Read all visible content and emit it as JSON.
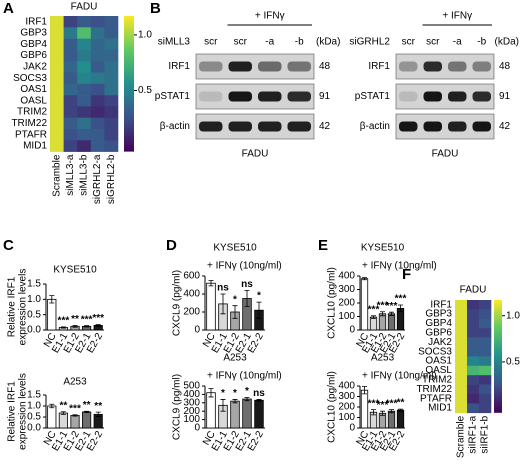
{
  "panel_labels": [
    "A",
    "B",
    "C",
    "D",
    "E",
    "F"
  ],
  "blots": [
    {
      "condition_label": "siMLL3",
      "treatment": "+ IFNγ",
      "lanes": [
        "scr",
        "scr",
        "-a",
        "-b"
      ],
      "unit": "(kDa)",
      "rows": [
        {
          "protein": "IRF1",
          "kda": 48
        },
        {
          "protein": "pSTAT1",
          "kda": 91
        },
        {
          "protein": "β-actin",
          "kda": 42
        }
      ],
      "cell_line": "FADU"
    },
    {
      "condition_label": "siGRHL2",
      "treatment": "+ IFNγ",
      "lanes": [
        "scr",
        "scr",
        "-a",
        "-b"
      ],
      "unit": "(kDa)",
      "rows": [
        {
          "protein": "IRF1",
          "kda": 48
        },
        {
          "protein": "pSTAT1",
          "kda": 91
        },
        {
          "protein": "β-actin",
          "kda": 42
        }
      ],
      "cell_line": "FADU"
    }
  ],
  "chart_data": [
    {
      "type": "heatmap",
      "title": "FADU",
      "rows": [
        "IRF1",
        "GBP3",
        "GBP4",
        "GBP6",
        "JAK2",
        "SOCS3",
        "OAS1",
        "OASL",
        "TRIM2",
        "TRIM22",
        "PTAFR",
        "MID1"
      ],
      "columns": [
        "Scramble",
        "siMLL3-a",
        "siMLL3-b",
        "siGRHL2-a",
        "siGRHL2-b"
      ],
      "values": [
        [
          1.1,
          0.2,
          0.3,
          0.25,
          0.3
        ],
        [
          1.1,
          0.45,
          0.8,
          0.4,
          0.3
        ],
        [
          1.1,
          0.3,
          0.5,
          0.35,
          0.4
        ],
        [
          1.1,
          0.3,
          0.45,
          0.35,
          0.35
        ],
        [
          1.1,
          0.35,
          0.55,
          0.3,
          0.4
        ],
        [
          1.1,
          0.3,
          0.5,
          0.45,
          0.4
        ],
        [
          1.1,
          0.35,
          0.3,
          0.25,
          0.4
        ],
        [
          1.1,
          0.2,
          0.3,
          0.15,
          0.2
        ],
        [
          1.1,
          0.2,
          0.15,
          0.1,
          0.15
        ],
        [
          1.1,
          0.3,
          0.4,
          0.25,
          0.2
        ],
        [
          1.1,
          0.25,
          0.3,
          0.3,
          0.2
        ],
        [
          1.1,
          0.2,
          0.1,
          0.3,
          0.25
        ]
      ],
      "colorscale": [
        "#440154",
        "#3b528b",
        "#21918c",
        "#5ec962",
        "#fde725"
      ],
      "clim": [
        -0.05,
        1.17
      ],
      "cticks": [
        0.5,
        {
          "value": 1,
          "label": "1.0"
        }
      ]
    },
    {
      "type": "bar",
      "title": "KYSE510",
      "ylabel": [
        "Relative IRF1",
        "expression levels"
      ],
      "categories": [
        "NC",
        "E1-1",
        "E1-2",
        "E2-1",
        "E2-2"
      ],
      "values": [
        1.0,
        0.08,
        0.12,
        0.12,
        0.15
      ],
      "errors": [
        0.12,
        0.02,
        0.03,
        0.02,
        0.03
      ],
      "significance": [
        null,
        "***",
        "**",
        "***",
        "***"
      ],
      "colors": [
        "#ffffff",
        "#d9d9d9",
        "#a6a6a6",
        "#6e6e6e",
        "#1a1a1a"
      ],
      "ylim": [
        0,
        1.5
      ],
      "yticks": [
        {
          "value": 0,
          "label": "0.0"
        },
        0.5,
        {
          "value": 1,
          "label": "1.0"
        },
        1.5
      ]
    },
    {
      "type": "bar",
      "title": "A253",
      "ylabel": [
        "Relative IRF1",
        "expression levels"
      ],
      "categories": [
        "NC",
        "E1-1",
        "E1-2",
        "E2-1",
        "E2-2"
      ],
      "values": [
        1.0,
        0.68,
        0.57,
        0.73,
        0.62
      ],
      "errors": [
        0.08,
        0.06,
        0.03,
        0.03,
        0.1
      ],
      "significance": [
        null,
        "**",
        "***",
        "**",
        "**"
      ],
      "colors": [
        "#ffffff",
        "#d9d9d9",
        "#a6a6a6",
        "#6e6e6e",
        "#1a1a1a"
      ],
      "ylim": [
        0,
        1.5
      ],
      "yticks": [
        {
          "value": 0,
          "label": "0.0"
        },
        0.5,
        {
          "value": 1,
          "label": "1.0"
        },
        1.5
      ]
    },
    {
      "type": "bar",
      "title": "KYSE510",
      "ylabel": [
        "CXCL9 (pg/ml)"
      ],
      "annotation": "+ IFNγ (10ng/ml)",
      "categories": [
        "NC",
        "E1-1",
        "E1-2",
        "E2-1",
        "E2-2"
      ],
      "values": [
        520,
        290,
        200,
        350,
        220
      ],
      "errors": [
        30,
        110,
        70,
        90,
        90
      ],
      "significance": [
        null,
        "ns",
        "*",
        "ns",
        "*"
      ],
      "colors": [
        "#ffffff",
        "#d9d9d9",
        "#a6a6a6",
        "#6e6e6e",
        "#1a1a1a"
      ],
      "ylim": [
        0,
        600
      ],
      "yticks": [
        0,
        200,
        400,
        600
      ]
    },
    {
      "type": "bar",
      "title": "A253",
      "ylabel": [
        "CXCL9 (pg/ml)"
      ],
      "annotation": "+ IFNγ (10ng/ml)",
      "categories": [
        "NC",
        "E1-1",
        "E1-2",
        "E2-1",
        "E2-2"
      ],
      "values": [
        420,
        270,
        320,
        345,
        330
      ],
      "errors": [
        50,
        70,
        20,
        20,
        10
      ],
      "significance": [
        null,
        "*",
        "*",
        "*",
        "ns"
      ],
      "colors": [
        "#ffffff",
        "#d9d9d9",
        "#a6a6a6",
        "#6e6e6e",
        "#1a1a1a"
      ],
      "ylim": [
        0,
        500
      ],
      "yticks": [
        0,
        100,
        200,
        300,
        400,
        500
      ]
    },
    {
      "type": "bar",
      "title": "KYSE510",
      "ylabel": [
        "CXCL10 (pg/ml)"
      ],
      "annotation": "+ IFNγ (10ng/ml)",
      "categories": [
        "NC",
        "E1-1",
        "E1-2",
        "E2-1",
        "E2-2"
      ],
      "values": [
        380,
        95,
        120,
        120,
        160
      ],
      "errors": [
        8,
        10,
        15,
        12,
        25
      ],
      "significance": [
        null,
        "***",
        "***",
        "***",
        "***"
      ],
      "colors": [
        "#ffffff",
        "#d9d9d9",
        "#a6a6a6",
        "#6e6e6e",
        "#1a1a1a"
      ],
      "ylim": [
        0,
        400
      ],
      "yticks": [
        0,
        100,
        200,
        300,
        400
      ]
    },
    {
      "type": "bar",
      "title": "A253",
      "ylabel": [
        "CXCL10 (pg/ml)"
      ],
      "annotation": "+ IFNγ (10ng/ml)",
      "categories": [
        "NC",
        "E1-1",
        "E1-2",
        "E2-1",
        "E2-2"
      ],
      "values": [
        360,
        150,
        140,
        160,
        170
      ],
      "errors": [
        35,
        25,
        20,
        15,
        10
      ],
      "significance": [
        null,
        "***",
        "***",
        "***",
        "**"
      ],
      "colors": [
        "#ffffff",
        "#d9d9d9",
        "#a6a6a6",
        "#6e6e6e",
        "#1a1a1a"
      ],
      "ylim": [
        0,
        400
      ],
      "yticks": [
        0,
        100,
        200,
        300,
        400
      ]
    },
    {
      "type": "heatmap",
      "title": "FADU",
      "rows": [
        "IRF1",
        "GBP3",
        "GBP4",
        "GBP6",
        "JAK2",
        "SOCS3",
        "OAS1",
        "OASL",
        "TRIM2",
        "TRIM22",
        "PTAFR",
        "MID1"
      ],
      "columns": [
        "Scramble",
        "siIRF1-a",
        "siIRF1-b"
      ],
      "values": [
        [
          1.1,
          0.15,
          0.2
        ],
        [
          1.1,
          0.2,
          0.25
        ],
        [
          1.1,
          0.2,
          0.3
        ],
        [
          1.1,
          0.2,
          0.2
        ],
        [
          1.1,
          0.3,
          0.3
        ],
        [
          1.1,
          0.3,
          0.3
        ],
        [
          1.1,
          0.5,
          0.45
        ],
        [
          1.1,
          0.75,
          0.8
        ],
        [
          1.1,
          0.2,
          0.15
        ],
        [
          1.1,
          0.15,
          0.25
        ],
        [
          1.1,
          0.1,
          0.2
        ],
        [
          1.1,
          0.25,
          0.2
        ]
      ],
      "colorscale": [
        "#440154",
        "#3b528b",
        "#21918c",
        "#5ec962",
        "#fde725"
      ],
      "clim": [
        -0.05,
        1.17
      ],
      "cticks": [
        0.5,
        {
          "value": 1,
          "label": "1.0"
        }
      ]
    }
  ]
}
